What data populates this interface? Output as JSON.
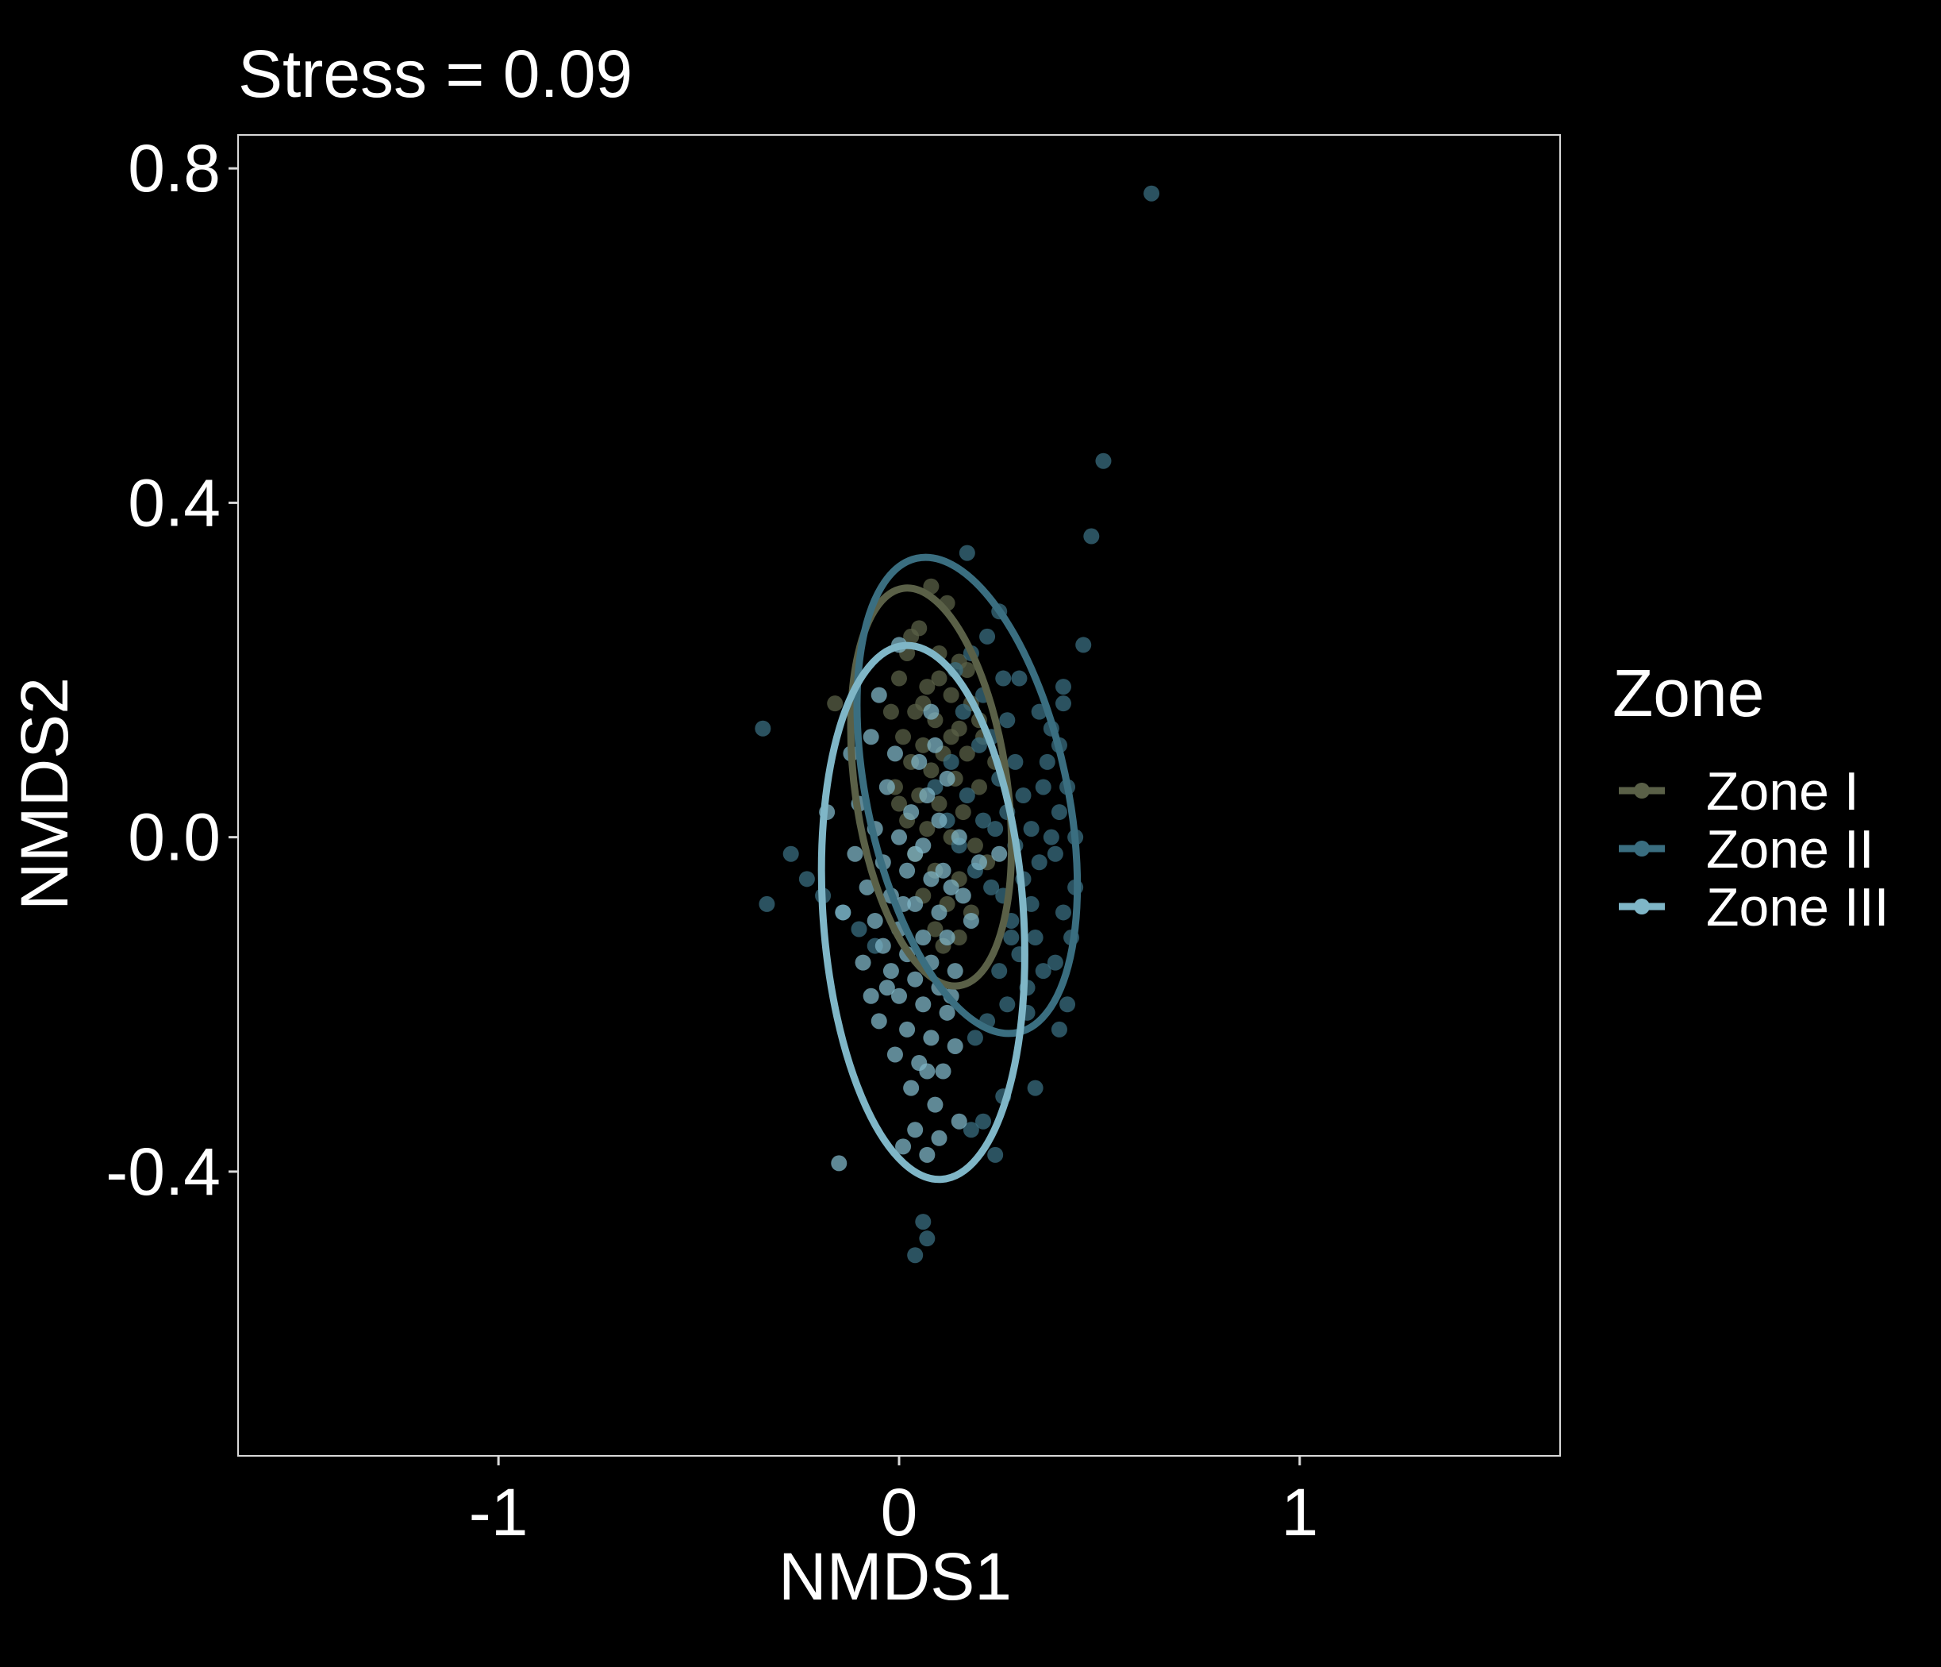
{
  "chart_data": {
    "type": "scatter",
    "title": "Stress = 0.09",
    "xlabel": "NMDS1",
    "ylabel": "NMDS2",
    "xlim": [
      -1.65,
      1.65
    ],
    "ylim": [
      -0.74,
      0.84
    ],
    "x_ticks": [
      -1,
      0,
      1
    ],
    "x_tick_labels": [
      "-1",
      "0",
      "1"
    ],
    "y_ticks": [
      0.8,
      0.4,
      0.0,
      -0.4
    ],
    "y_tick_labels": [
      "0.8",
      "0.4",
      "0.0",
      "-0.4"
    ],
    "grid": false,
    "legend": {
      "title": "Zone",
      "placement": "right"
    },
    "series": [
      {
        "name": "Zone I",
        "color": "#5a6047",
        "ellipse": {
          "cx": 0.08,
          "cy": 0.06,
          "rx": 0.19,
          "ry": 0.24,
          "angle_deg": -8
        },
        "points": [
          [
            0.08,
            0.3
          ],
          [
            0.12,
            0.28
          ],
          [
            0.05,
            0.25
          ],
          [
            0.02,
            0.22
          ],
          [
            0.1,
            0.22
          ],
          [
            0.15,
            0.21
          ],
          [
            0.0,
            0.19
          ],
          [
            0.07,
            0.18
          ],
          [
            0.13,
            0.17
          ],
          [
            0.18,
            0.16
          ],
          [
            -0.02,
            0.15
          ],
          [
            0.04,
            0.15
          ],
          [
            0.09,
            0.14
          ],
          [
            0.15,
            0.13
          ],
          [
            0.21,
            0.12
          ],
          [
            0.01,
            0.12
          ],
          [
            0.06,
            0.11
          ],
          [
            0.11,
            0.1
          ],
          [
            0.17,
            0.1
          ],
          [
            0.03,
            0.09
          ],
          [
            0.08,
            0.08
          ],
          [
            0.14,
            0.07
          ],
          [
            0.2,
            0.06
          ],
          [
            -0.01,
            0.06
          ],
          [
            0.05,
            0.05
          ],
          [
            0.1,
            0.04
          ],
          [
            0.16,
            0.03
          ],
          [
            0.02,
            0.02
          ],
          [
            0.07,
            0.01
          ],
          [
            0.13,
            0.0
          ],
          [
            0.19,
            -0.01
          ],
          [
            0.04,
            -0.02
          ],
          [
            0.09,
            -0.04
          ],
          [
            0.15,
            -0.05
          ],
          [
            0.06,
            -0.07
          ],
          [
            0.12,
            -0.08
          ],
          [
            0.18,
            -0.09
          ],
          [
            0.09,
            -0.11
          ],
          [
            0.15,
            -0.12
          ],
          [
            -0.16,
            0.16
          ],
          [
            0.24,
            0.09
          ],
          [
            0.22,
            -0.03
          ],
          [
            0.03,
            0.24
          ],
          [
            0.17,
            0.2
          ],
          [
            0.11,
            -0.13
          ],
          [
            0.06,
            0.16
          ],
          [
            0.13,
            0.12
          ],
          [
            0.0,
            0.04
          ],
          [
            0.2,
            0.14
          ],
          [
            0.1,
            0.19
          ]
        ]
      },
      {
        "name": "Zone II",
        "color": "#3a6e80",
        "ellipse": {
          "cx": 0.17,
          "cy": 0.05,
          "rx": 0.25,
          "ry": 0.29,
          "angle_deg": -12
        },
        "points": [
          [
            0.63,
            0.77
          ],
          [
            0.51,
            0.45
          ],
          [
            0.48,
            0.36
          ],
          [
            0.17,
            0.34
          ],
          [
            0.46,
            0.23
          ],
          [
            0.41,
            0.18
          ],
          [
            0.41,
            0.16
          ],
          [
            0.38,
            0.13
          ],
          [
            0.4,
            0.11
          ],
          [
            0.37,
            0.09
          ],
          [
            0.42,
            0.06
          ],
          [
            0.4,
            0.03
          ],
          [
            0.38,
            0.0
          ],
          [
            0.39,
            -0.02
          ],
          [
            0.44,
            -0.06
          ],
          [
            0.41,
            -0.09
          ],
          [
            0.43,
            -0.12
          ],
          [
            0.39,
            -0.15
          ],
          [
            0.42,
            -0.2
          ],
          [
            0.4,
            -0.23
          ],
          [
            0.34,
            -0.3
          ],
          [
            0.25,
            0.27
          ],
          [
            0.22,
            0.24
          ],
          [
            0.18,
            0.22
          ],
          [
            0.26,
            0.19
          ],
          [
            0.21,
            0.17
          ],
          [
            0.27,
            0.14
          ],
          [
            0.23,
            0.12
          ],
          [
            0.29,
            0.09
          ],
          [
            0.25,
            0.07
          ],
          [
            0.31,
            0.05
          ],
          [
            0.27,
            0.03
          ],
          [
            0.33,
            0.01
          ],
          [
            0.29,
            -0.01
          ],
          [
            0.35,
            -0.03
          ],
          [
            0.31,
            -0.05
          ],
          [
            0.26,
            -0.07
          ],
          [
            0.33,
            -0.08
          ],
          [
            0.28,
            -0.1
          ],
          [
            0.34,
            -0.12
          ],
          [
            0.3,
            -0.14
          ],
          [
            0.25,
            -0.16
          ],
          [
            0.32,
            -0.18
          ],
          [
            0.27,
            -0.2
          ],
          [
            0.22,
            -0.22
          ],
          [
            0.19,
            -0.24
          ],
          [
            0.13,
            0.09
          ],
          [
            0.17,
            0.05
          ],
          [
            0.21,
            0.02
          ],
          [
            0.15,
            -0.01
          ],
          [
            0.19,
            -0.04
          ],
          [
            0.23,
            -0.06
          ],
          [
            -0.34,
            0.13
          ],
          [
            -0.33,
            -0.08
          ],
          [
            -0.27,
            -0.02
          ],
          [
            -0.23,
            -0.05
          ],
          [
            -0.19,
            -0.07
          ],
          [
            -0.14,
            -0.09
          ],
          [
            -0.1,
            -0.11
          ],
          [
            -0.06,
            -0.13
          ],
          [
            0.06,
            -0.46
          ],
          [
            0.07,
            -0.48
          ],
          [
            0.04,
            -0.5
          ],
          [
            0.24,
            -0.38
          ],
          [
            0.21,
            -0.34
          ],
          [
            0.18,
            -0.35
          ],
          [
            0.26,
            -0.31
          ],
          [
            0.32,
            -0.21
          ],
          [
            0.36,
            0.06
          ],
          [
            0.44,
            0.0
          ],
          [
            0.12,
            0.02
          ],
          [
            0.16,
            0.15
          ],
          [
            0.2,
            0.11
          ],
          [
            0.24,
            0.01
          ],
          [
            0.28,
            -0.12
          ],
          [
            0.36,
            -0.16
          ],
          [
            0.3,
            0.19
          ],
          [
            0.35,
            0.15
          ],
          [
            0.14,
            0.2
          ],
          [
            0.09,
            0.06
          ]
        ]
      },
      {
        "name": "Zone III",
        "color": "#7fb6c7",
        "ellipse": {
          "cx": 0.06,
          "cy": -0.09,
          "rx": 0.25,
          "ry": 0.32,
          "angle_deg": -4
        },
        "points": [
          [
            0.0,
            0.23
          ],
          [
            -0.05,
            0.17
          ],
          [
            0.08,
            0.15
          ],
          [
            -0.07,
            0.12
          ],
          [
            -0.12,
            0.1
          ],
          [
            0.05,
            0.09
          ],
          [
            0.12,
            0.07
          ],
          [
            -0.03,
            0.06
          ],
          [
            0.07,
            0.05
          ],
          [
            -0.1,
            0.04
          ],
          [
            0.03,
            0.03
          ],
          [
            0.1,
            0.02
          ],
          [
            -0.06,
            0.01
          ],
          [
            0.0,
            0.0
          ],
          [
            0.06,
            -0.01
          ],
          [
            -0.11,
            -0.02
          ],
          [
            -0.04,
            -0.03
          ],
          [
            0.02,
            -0.04
          ],
          [
            0.08,
            -0.05
          ],
          [
            0.13,
            -0.06
          ],
          [
            -0.08,
            -0.06
          ],
          [
            -0.02,
            -0.07
          ],
          [
            0.04,
            -0.08
          ],
          [
            0.1,
            -0.09
          ],
          [
            -0.06,
            -0.1
          ],
          [
            0.0,
            -0.11
          ],
          [
            0.06,
            -0.12
          ],
          [
            0.12,
            -0.12
          ],
          [
            -0.04,
            -0.13
          ],
          [
            0.02,
            -0.14
          ],
          [
            0.08,
            -0.15
          ],
          [
            0.14,
            -0.16
          ],
          [
            -0.02,
            -0.16
          ],
          [
            0.04,
            -0.17
          ],
          [
            0.1,
            -0.18
          ],
          [
            0.0,
            -0.19
          ],
          [
            0.06,
            -0.2
          ],
          [
            0.12,
            -0.21
          ],
          [
            -0.05,
            -0.22
          ],
          [
            0.02,
            -0.23
          ],
          [
            0.08,
            -0.24
          ],
          [
            0.14,
            -0.25
          ],
          [
            -0.01,
            -0.26
          ],
          [
            0.05,
            -0.27
          ],
          [
            0.11,
            -0.28
          ],
          [
            0.03,
            -0.3
          ],
          [
            0.09,
            -0.32
          ],
          [
            0.15,
            -0.34
          ],
          [
            0.04,
            -0.35
          ],
          [
            0.1,
            -0.36
          ],
          [
            -0.15,
            -0.39
          ],
          [
            0.01,
            -0.37
          ],
          [
            0.07,
            -0.38
          ],
          [
            -0.18,
            0.03
          ],
          [
            -0.14,
            -0.09
          ],
          [
            -0.09,
            -0.15
          ],
          [
            0.15,
            0.0
          ],
          [
            0.2,
            -0.03
          ],
          [
            0.25,
            -0.02
          ],
          [
            0.18,
            -0.1
          ],
          [
            0.09,
            0.11
          ],
          [
            -0.01,
            0.1
          ],
          [
            0.04,
            -0.02
          ],
          [
            0.11,
            -0.04
          ],
          [
            0.16,
            -0.07
          ],
          [
            -0.07,
            -0.19
          ],
          [
            0.13,
            -0.19
          ],
          [
            0.01,
            -0.08
          ],
          [
            -0.03,
            -0.18
          ],
          [
            0.07,
            -0.28
          ]
        ]
      }
    ]
  }
}
